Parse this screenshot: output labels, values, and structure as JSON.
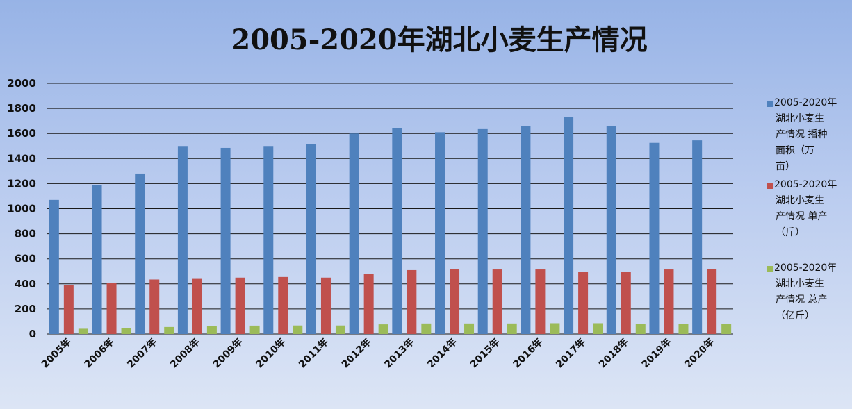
{
  "chart_data": {
    "type": "bar",
    "title": "2005-2020年湖北小麦生产情况",
    "xlabel": "",
    "ylabel": "",
    "ylim": [
      0,
      2000
    ],
    "yticks": [
      0,
      200,
      400,
      600,
      800,
      1000,
      1200,
      1400,
      1600,
      1800,
      2000
    ],
    "grid": true,
    "legend_position": "right",
    "categories": [
      "2005年",
      "2006年",
      "2007年",
      "2008年",
      "2009年",
      "2010年",
      "2011年",
      "2012年",
      "2013年",
      "2014年",
      "2015年",
      "2016年",
      "2017年",
      "2018年",
      "2019年",
      "2020年"
    ],
    "series": [
      {
        "name": "2005-2020年湖北小麦生产情况 播种面积（万亩）",
        "legend_lines": [
          "2005-2020年",
          "湖北小麦生",
          "产情况 播种",
          "面积（万",
          "亩）"
        ],
        "color": "#4f81bd",
        "values": [
          1070,
          1190,
          1280,
          1500,
          1485,
          1500,
          1515,
          1600,
          1645,
          1610,
          1635,
          1660,
          1730,
          1660,
          1525,
          1545
        ]
      },
      {
        "name": "2005-2020年湖北小麦生产情况 单产（斤）",
        "legend_lines": [
          "2005-2020年",
          "湖北小麦生",
          "产情况 单产",
          "（斤）"
        ],
        "color": "#c0504d",
        "values": [
          390,
          410,
          435,
          440,
          450,
          455,
          450,
          480,
          510,
          520,
          515,
          515,
          495,
          495,
          515,
          520
        ]
      },
      {
        "name": "2005-2020年湖北小麦生产情况 总产（亿斤）",
        "legend_lines": [
          "2005-2020年",
          "湖北小麦生",
          "产情况 总产",
          "（亿斤）"
        ],
        "color": "#9bbb59",
        "values": [
          42,
          49,
          56,
          66,
          67,
          68,
          68,
          77,
          84,
          84,
          84,
          86,
          86,
          82,
          79,
          80
        ]
      }
    ]
  }
}
